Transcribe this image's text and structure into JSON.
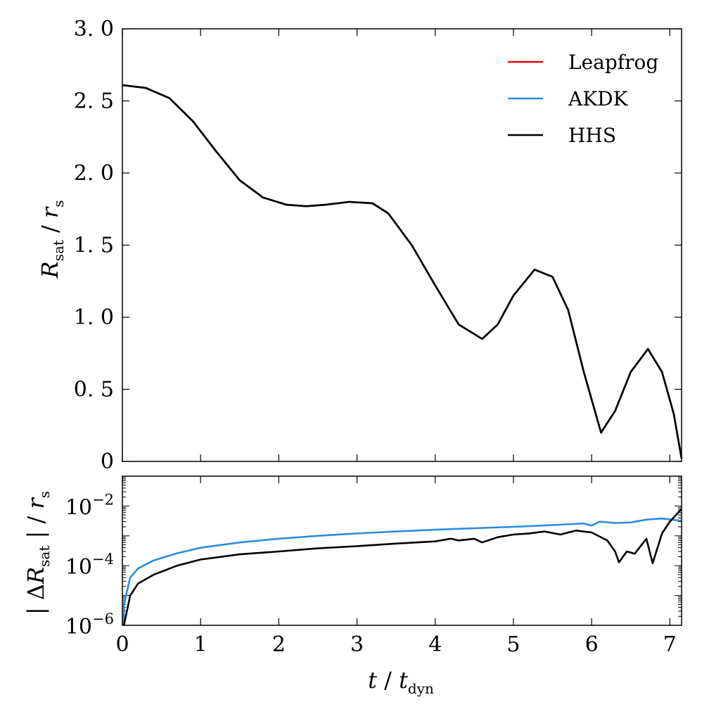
{
  "chart_data": [
    {
      "type": "line",
      "panel": "top",
      "ylabel": "R_sat / r_s",
      "xlim": [
        0,
        7.15
      ],
      "ylim": [
        0,
        3.0
      ],
      "yticks": [
        0,
        0.5,
        1.0,
        1.5,
        2.0,
        2.5,
        3.0
      ],
      "ytick_labels": [
        "0",
        "0. 5",
        "1. 0",
        "1. 5",
        "2. 0",
        "2. 5",
        "3. 0"
      ],
      "legend_position": "top-right",
      "x": [
        0.0,
        0.3,
        0.6,
        0.9,
        1.2,
        1.5,
        1.8,
        2.1,
        2.35,
        2.6,
        2.9,
        3.2,
        3.4,
        3.7,
        4.0,
        4.3,
        4.6,
        4.8,
        5.0,
        5.27,
        5.5,
        5.7,
        5.9,
        6.12,
        6.3,
        6.5,
        6.72,
        6.9,
        7.05,
        7.15
      ],
      "series": [
        {
          "name": "Leapfrog",
          "color": "#e8000b",
          "values": [
            2.61,
            2.59,
            2.52,
            2.36,
            2.15,
            1.95,
            1.83,
            1.78,
            1.77,
            1.78,
            1.8,
            1.79,
            1.72,
            1.5,
            1.22,
            0.95,
            0.85,
            0.95,
            1.15,
            1.33,
            1.28,
            1.05,
            0.62,
            0.2,
            0.35,
            0.62,
            0.78,
            0.62,
            0.33,
            0.02
          ]
        },
        {
          "name": "AKDK",
          "color": "#2b8de0",
          "values": [
            2.61,
            2.59,
            2.52,
            2.36,
            2.15,
            1.95,
            1.83,
            1.78,
            1.77,
            1.78,
            1.8,
            1.79,
            1.72,
            1.5,
            1.22,
            0.95,
            0.85,
            0.95,
            1.15,
            1.33,
            1.28,
            1.05,
            0.62,
            0.2,
            0.35,
            0.62,
            0.78,
            0.62,
            0.33,
            0.02
          ]
        },
        {
          "name": "HHS",
          "color": "#000000",
          "values": [
            2.61,
            2.59,
            2.52,
            2.36,
            2.15,
            1.95,
            1.83,
            1.78,
            1.77,
            1.78,
            1.8,
            1.79,
            1.72,
            1.5,
            1.22,
            0.95,
            0.85,
            0.95,
            1.15,
            1.33,
            1.28,
            1.05,
            0.62,
            0.2,
            0.35,
            0.62,
            0.78,
            0.62,
            0.33,
            0.02
          ]
        }
      ]
    },
    {
      "type": "line",
      "panel": "bottom",
      "xlabel": "t / t_dyn",
      "ylabel": "| ΔR_sat | / r_s",
      "yscale": "log",
      "xlim": [
        0,
        7.15
      ],
      "ylim": [
        1e-06,
        0.1
      ],
      "xticks": [
        0,
        1,
        2,
        3,
        4,
        5,
        6,
        7
      ],
      "yticks": [
        1e-06,
        0.0001,
        0.01
      ],
      "ytick_labels": [
        {
          "base": "10",
          "exp": "−6"
        },
        {
          "base": "10",
          "exp": "−4"
        },
        {
          "base": "10",
          "exp": "−2"
        }
      ],
      "series": [
        {
          "name": "AKDK",
          "color": "#2b8de0",
          "x": [
            0.02,
            0.1,
            0.2,
            0.4,
            0.7,
            1.0,
            1.5,
            2.0,
            2.5,
            3.0,
            3.5,
            4.0,
            4.5,
            5.0,
            5.5,
            5.9,
            6.0,
            6.1,
            6.3,
            6.5,
            6.7,
            6.9,
            7.15
          ],
          "values": [
            5e-06,
            4e-05,
            8e-05,
            0.00015,
            0.00026,
            0.0004,
            0.0006,
            0.0008,
            0.001,
            0.0012,
            0.0014,
            0.0016,
            0.0018,
            0.002,
            0.0023,
            0.0026,
            0.0022,
            0.003,
            0.0027,
            0.0028,
            0.0035,
            0.0038,
            0.0032
          ]
        },
        {
          "name": "HHS",
          "color": "#000000",
          "x": [
            0.02,
            0.1,
            0.2,
            0.4,
            0.7,
            1.0,
            1.5,
            2.0,
            2.5,
            3.0,
            3.5,
            4.0,
            4.2,
            4.3,
            4.5,
            4.6,
            4.8,
            5.0,
            5.2,
            5.4,
            5.6,
            5.8,
            6.0,
            6.2,
            6.3,
            6.35,
            6.45,
            6.55,
            6.7,
            6.78,
            6.9,
            7.0,
            7.15
          ],
          "values": [
            1e-06,
            1e-05,
            2.5e-05,
            5e-05,
            0.0001,
            0.00016,
            0.00024,
            0.0003,
            0.00038,
            0.00045,
            0.00055,
            0.00065,
            0.0008,
            0.0007,
            0.0008,
            0.0006,
            0.0009,
            0.0011,
            0.0012,
            0.0014,
            0.0011,
            0.0015,
            0.0013,
            0.0007,
            0.0003,
            0.00013,
            0.0003,
            0.00025,
            0.0008,
            0.00012,
            0.0012,
            0.003,
            0.008
          ]
        }
      ]
    }
  ]
}
